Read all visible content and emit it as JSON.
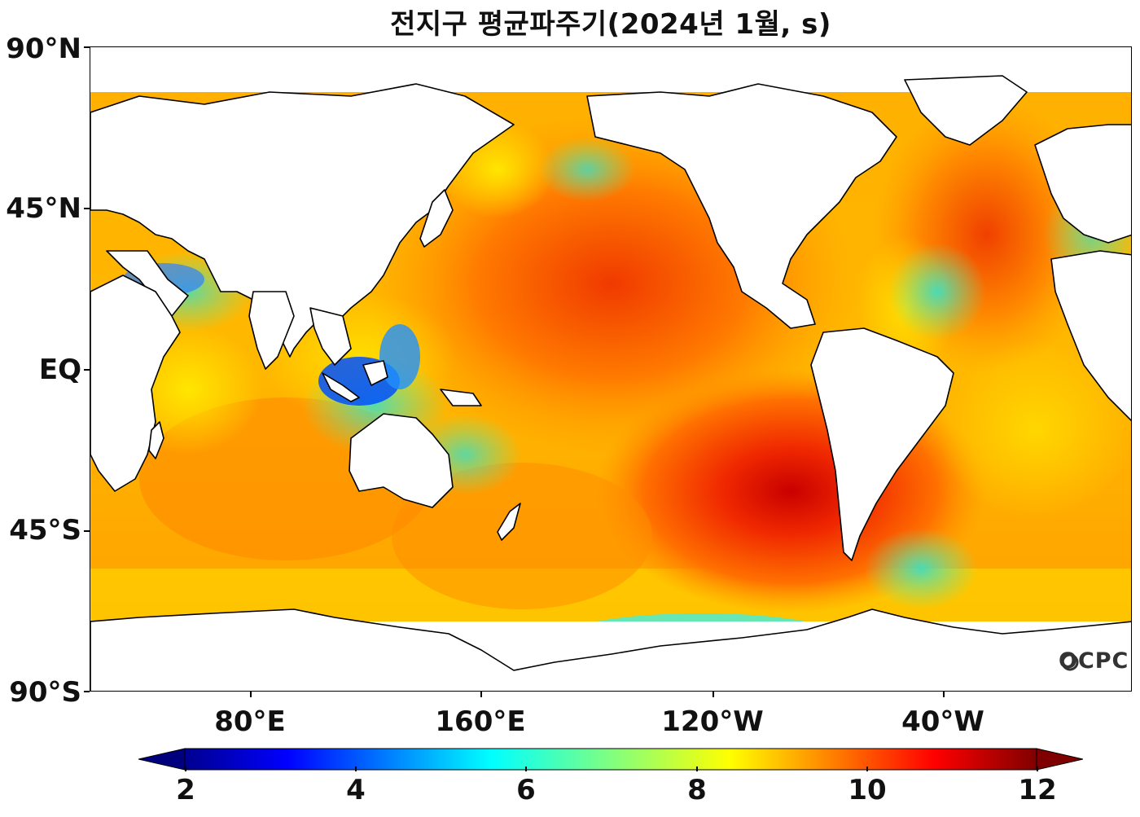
{
  "title": "전지구 평균파주기(2024년 1월, s)",
  "map": {
    "lat_labels": [
      "90°N",
      "45°N",
      "EQ",
      "45°S",
      "90°S"
    ],
    "lon_labels": [
      "80°E",
      "160°E",
      "120°W",
      "40°W"
    ],
    "colors": {
      "coast": "#000000",
      "land": "#ffffff",
      "ocean_high": "#ff3a00",
      "ocean_mid": "#ffcc00",
      "ocean_low": "#40c8ff",
      "ocean_shallow": "#0050ff"
    }
  },
  "colorbar": {
    "ticks": [
      "2",
      "4",
      "6",
      "8",
      "10",
      "12"
    ],
    "range": [
      2,
      12
    ],
    "extend": "both",
    "colormap": "jet"
  },
  "watermark": "OCPC"
}
